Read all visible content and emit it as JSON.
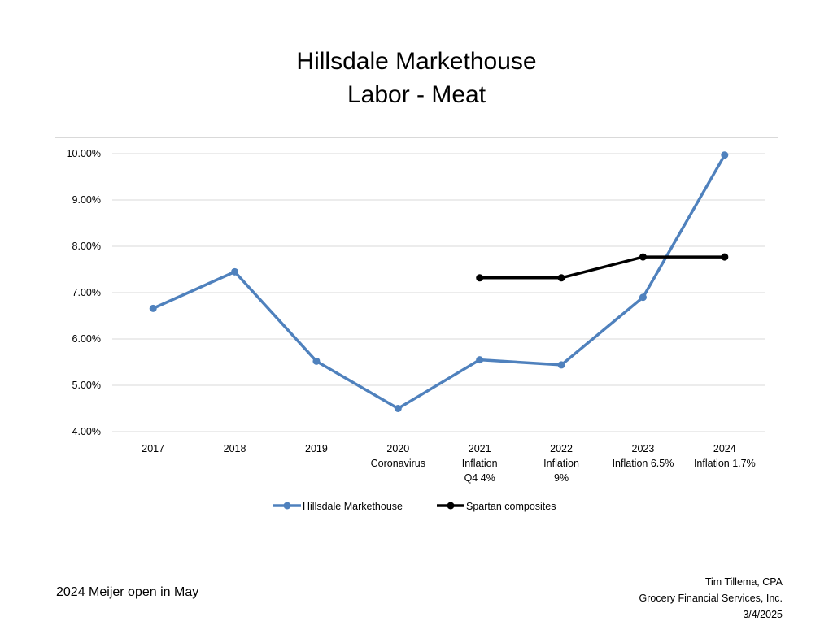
{
  "title_line1": "Hillsdale Markethouse",
  "title_line2": "Labor - Meat",
  "footer_note": "2024 Meijer open in May",
  "credit": {
    "name": "Tim Tillema, CPA",
    "company": "Grocery Financial Services, Inc.",
    "date": "3/4/2025"
  },
  "chart_data": {
    "type": "line",
    "title": "Hillsdale Markethouse\nLabor - Meat",
    "xlabel": "",
    "ylabel": "",
    "categories": [
      [
        "2017"
      ],
      [
        "2018"
      ],
      [
        "2019"
      ],
      [
        "2020",
        "Coronavirus"
      ],
      [
        "2021",
        "Inflation",
        "Q4 4%"
      ],
      [
        "2022",
        "Inflation",
        "9%"
      ],
      [
        "2023",
        "Inflation 6.5%"
      ],
      [
        "2024",
        "Inflation 1.7%"
      ]
    ],
    "ylim": [
      4.0,
      10.0
    ],
    "yticks": [
      4.0,
      5.0,
      6.0,
      7.0,
      8.0,
      9.0,
      10.0
    ],
    "ytick_labels": [
      "4.00%",
      "5.00%",
      "6.00%",
      "7.00%",
      "8.00%",
      "9.00%",
      "10.00%"
    ],
    "grid": true,
    "legend_position": "bottom",
    "series": [
      {
        "name": "Hillsdale Markethouse",
        "color": "#4f81bd",
        "values": [
          6.66,
          7.45,
          5.52,
          4.5,
          5.55,
          5.44,
          6.9,
          9.97
        ]
      },
      {
        "name": "Spartan composites",
        "color": "#000000",
        "values": [
          null,
          null,
          null,
          null,
          7.32,
          7.32,
          7.77,
          7.77
        ]
      }
    ]
  }
}
